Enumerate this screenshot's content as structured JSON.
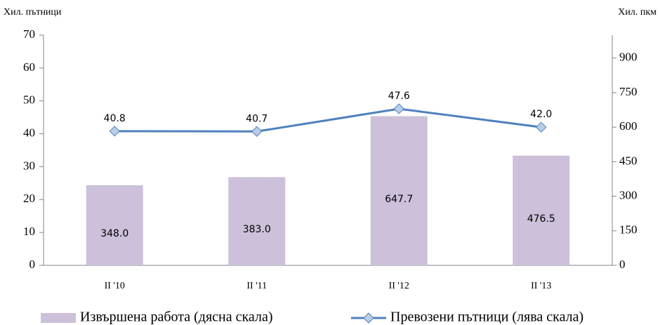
{
  "chart_data": {
    "type": "combo",
    "y_label": "Хил. пътници",
    "y2_label": "Хил. пкм",
    "categories": [
      "II '10",
      "II '11",
      "II '12",
      "II '13"
    ],
    "ylim": [
      0,
      70
    ],
    "yticks": [
      0,
      10,
      20,
      30,
      40,
      50,
      60,
      70
    ],
    "y2lim": [
      0,
      1000
    ],
    "y2ticks": [
      0,
      150,
      300,
      450,
      600,
      750,
      900
    ],
    "series": [
      {
        "name": "Извършена работа (дясна скала)",
        "type": "bar",
        "axis": "y2",
        "color": "#ccc0da",
        "values": [
          348.0,
          383.0,
          647.7,
          476.5
        ],
        "value_labels": [
          "348.0",
          "383.0",
          "647.7",
          "476.5"
        ]
      },
      {
        "name": "Превозени пътници (лява скала)",
        "type": "line",
        "color": "#4f81bd",
        "marker_color": "#b9cde5",
        "values": [
          40.8,
          40.7,
          47.6,
          42.0
        ],
        "value_labels": [
          "40.8",
          "40.7",
          "47.6",
          "42.0"
        ]
      }
    ]
  }
}
